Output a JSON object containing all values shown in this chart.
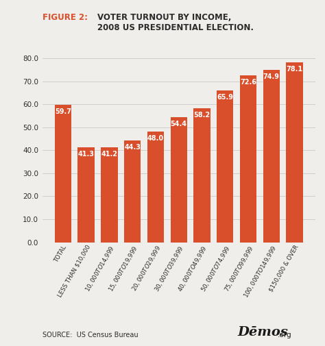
{
  "categories": [
    "TOTAL",
    "LESS THAN $10,000",
    "$10,000 TO $14,999",
    "$15,000 TO $19,999",
    "$20,000 TO $29,999",
    "$30,000 TO $39,999",
    "$40,000 TO $49,999",
    "$50,000 TO $74,999",
    "$75,000 TO $99,999",
    "$100,000 TO $149,999",
    "$150,000 & OVER"
  ],
  "values": [
    59.7,
    41.3,
    41.2,
    44.3,
    48.0,
    54.4,
    58.2,
    65.9,
    72.6,
    74.9,
    78.1
  ],
  "bar_color": "#d94f2b",
  "bg_color": "#f0eeeb",
  "title_prefix": "FIGURE 2:",
  "title_prefix_color": "#d94f2b",
  "title_color": "#2b2b2b",
  "value_label_color": "#ffffff",
  "value_label_fontsize": 7.0,
  "yticks": [
    0.0,
    10.0,
    20.0,
    30.0,
    40.0,
    50.0,
    60.0,
    70.0,
    80.0
  ],
  "ylim": [
    0,
    85
  ],
  "source_text": "SOURCE:  US Census Bureau",
  "grid_color": "#c8c8c8"
}
